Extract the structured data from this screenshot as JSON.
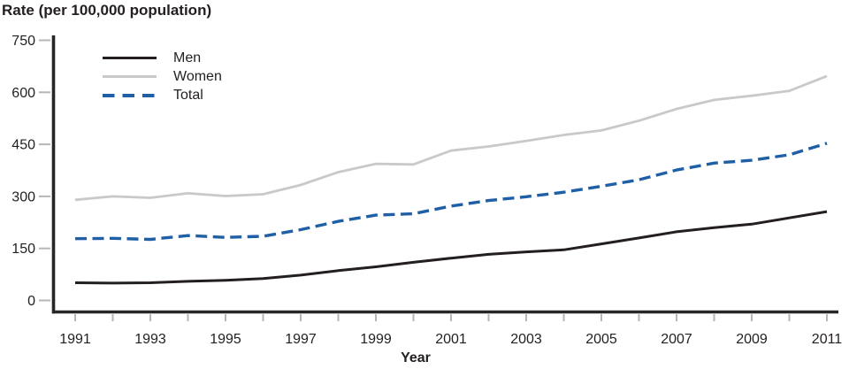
{
  "figure": {
    "title": "Rate (per 100,000 population)",
    "x_axis_title": "Year"
  },
  "chart_data": {
    "type": "line",
    "title": "Rate (per 100,000 population)",
    "xlabel": "Year",
    "ylabel": "Rate (per 100,000 population)",
    "xlim": [
      1991,
      2011
    ],
    "ylim": [
      0,
      750
    ],
    "grid": false,
    "legend_position": "top-left-inside",
    "yticks": [
      0,
      150,
      300,
      450,
      600,
      750
    ],
    "xtick_labels": [
      1991,
      1993,
      1995,
      1997,
      1999,
      2001,
      2003,
      2005,
      2007,
      2009,
      2011
    ],
    "x": [
      1991,
      1992,
      1993,
      1994,
      1995,
      1996,
      1997,
      1998,
      1999,
      2000,
      2001,
      2002,
      2003,
      2004,
      2005,
      2006,
      2007,
      2008,
      2009,
      2010,
      2011
    ],
    "series": [
      {
        "name": "Men",
        "color": "#231f20",
        "line_style": "solid",
        "width": 3,
        "values": [
          51,
          50,
          51,
          55,
          58,
          63,
          73,
          86,
          97,
          110,
          122,
          133,
          140,
          146,
          163,
          180,
          198,
          210,
          220,
          238,
          256
        ]
      },
      {
        "name": "Women",
        "color": "#c8c9cb",
        "line_style": "solid",
        "width": 2.8,
        "values": [
          290,
          300,
          296,
          309,
          301,
          306,
          333,
          370,
          394,
          392,
          432,
          444,
          460,
          477,
          490,
          518,
          552,
          578,
          590,
          604,
          647
        ]
      },
      {
        "name": "Total",
        "color": "#1e5fa6",
        "line_style": "dashed",
        "dash": [
          13,
          6.5
        ],
        "width": 3.4,
        "values": [
          178,
          179,
          176,
          187,
          182,
          185,
          204,
          228,
          246,
          250,
          272,
          288,
          299,
          312,
          329,
          348,
          376,
          396,
          404,
          420,
          453
        ]
      }
    ],
    "style": {
      "axis_color": "#27272a",
      "tick_color": "#b4b6b8",
      "text_color": "#231f20"
    }
  }
}
